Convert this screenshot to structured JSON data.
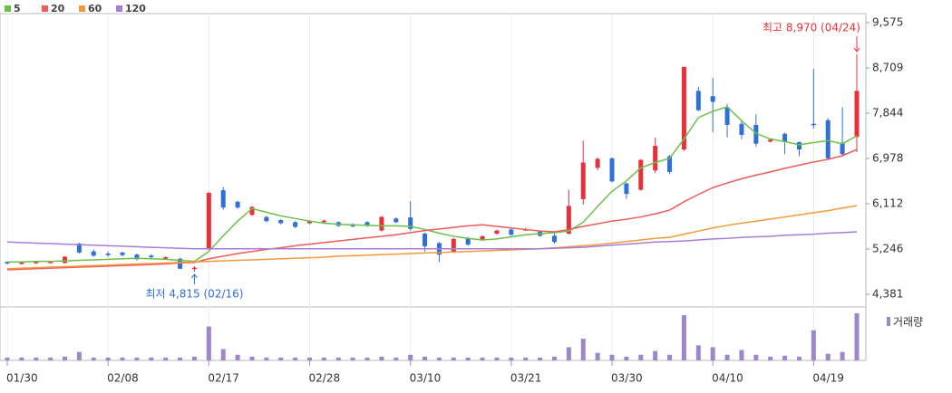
{
  "chart_data": {
    "type": "candlestick",
    "categories": [
      "01/30",
      null,
      null,
      null,
      null,
      null,
      null,
      "02/08",
      null,
      null,
      null,
      null,
      null,
      null,
      "02/17",
      null,
      null,
      null,
      null,
      null,
      null,
      "02/28",
      null,
      null,
      null,
      null,
      null,
      null,
      "03/10",
      null,
      null,
      null,
      null,
      null,
      null,
      "03/21",
      null,
      null,
      null,
      null,
      null,
      null,
      "03/30",
      null,
      null,
      null,
      null,
      null,
      null,
      "04/10",
      null,
      null,
      null,
      null,
      null,
      null,
      "04/19",
      null,
      null,
      null
    ],
    "open": [
      5000,
      4960,
      4980,
      4990,
      4980,
      5350,
      5200,
      5160,
      5180,
      5140,
      5120,
      5060,
      5060,
      4870,
      5250,
      6370,
      6150,
      5900,
      5860,
      5800,
      5760,
      5740,
      5760,
      5760,
      5720,
      5760,
      5600,
      5830,
      5850,
      5540,
      5360,
      5190,
      5460,
      5420,
      5540,
      5620,
      5600,
      5580,
      5500,
      5540,
      6200,
      6800,
      6980,
      6500,
      6380,
      6750,
      7020,
      7150,
      8270,
      8170,
      7960,
      7640,
      7620,
      7300,
      7450,
      7290,
      7640,
      7710,
      7280,
      7390
    ],
    "high": [
      5010,
      5010,
      5020,
      5010,
      5110,
      5370,
      5240,
      5200,
      5190,
      5160,
      5150,
      5110,
      5080,
      4920,
      6340,
      6430,
      6170,
      6070,
      5880,
      5820,
      5780,
      5800,
      5810,
      5780,
      5740,
      5780,
      5880,
      5850,
      6160,
      5560,
      5380,
      5460,
      5480,
      5510,
      5620,
      5640,
      5650,
      5600,
      5560,
      6380,
      7320,
      7000,
      7000,
      6520,
      6970,
      7380,
      7050,
      8730,
      8350,
      8520,
      8020,
      7700,
      7820,
      7360,
      7470,
      7300,
      8690,
      7750,
      7960,
      8970
    ],
    "low": [
      4950,
      4950,
      4960,
      4980,
      4970,
      5160,
      5100,
      5100,
      5110,
      5030,
      5060,
      5050,
      4860,
      4815,
      5230,
      6000,
      6020,
      5880,
      5760,
      5720,
      5650,
      5720,
      5740,
      5670,
      5660,
      5670,
      5580,
      5740,
      5600,
      5200,
      5000,
      5170,
      5310,
      5400,
      5520,
      5500,
      5590,
      5480,
      5350,
      5530,
      6100,
      6750,
      6520,
      6210,
      6360,
      6700,
      6680,
      7120,
      7880,
      7480,
      7380,
      7350,
      7200,
      7280,
      7060,
      7020,
      7550,
      6950,
      7040,
      7100
    ],
    "close": [
      4970,
      4990,
      5000,
      5000,
      5100,
      5180,
      5120,
      5130,
      5130,
      5050,
      5090,
      5090,
      4870,
      4890,
      6320,
      6040,
      6040,
      6050,
      5780,
      5740,
      5670,
      5780,
      5790,
      5690,
      5680,
      5690,
      5860,
      5760,
      5630,
      5300,
      5140,
      5440,
      5330,
      5490,
      5600,
      5520,
      5630,
      5500,
      5380,
      6070,
      6900,
      6970,
      6540,
      6300,
      6950,
      7220,
      6720,
      8730,
      7900,
      8060,
      7620,
      7430,
      7260,
      7340,
      7300,
      7150,
      7620,
      6980,
      7060,
      8270
    ],
    "up_color": "#e8323a",
    "down_color": "#2f6fd8",
    "series": [
      {
        "name": "5",
        "color": "#6cc04a",
        "values": [
          5000,
          5000,
          5010,
          5010,
          5020,
          5030,
          5040,
          5050,
          5060,
          5070,
          5060,
          5050,
          5030,
          5010,
          5200,
          5500,
          5780,
          6020,
          5950,
          5880,
          5830,
          5780,
          5740,
          5720,
          5710,
          5700,
          5690,
          5690,
          5680,
          5620,
          5550,
          5490,
          5450,
          5420,
          5440,
          5480,
          5520,
          5540,
          5560,
          5590,
          5760,
          6060,
          6350,
          6550,
          6800,
          6900,
          6980,
          7350,
          7760,
          7880,
          7965,
          7700,
          7460,
          7350,
          7300,
          7240,
          7280,
          7320,
          7260,
          7410
        ]
      },
      {
        "name": "20",
        "color": "#ef5a5a",
        "values": [
          4850,
          4860,
          4870,
          4880,
          4890,
          4900,
          4910,
          4920,
          4930,
          4940,
          4950,
          4960,
          4980,
          4990,
          5060,
          5110,
          5160,
          5200,
          5240,
          5270,
          5310,
          5340,
          5370,
          5400,
          5430,
          5460,
          5490,
          5520,
          5560,
          5600,
          5630,
          5660,
          5690,
          5710,
          5680,
          5650,
          5620,
          5590,
          5575,
          5620,
          5680,
          5730,
          5780,
          5815,
          5860,
          5920,
          5990,
          6150,
          6290,
          6420,
          6510,
          6590,
          6660,
          6720,
          6790,
          6850,
          6910,
          6960,
          7030,
          7150
        ]
      },
      {
        "name": "60",
        "color": "#f59a3c",
        "values": [
          4870,
          4880,
          4890,
          4900,
          4910,
          4920,
          4930,
          4940,
          4950,
          4960,
          4970,
          4980,
          4990,
          5000,
          5010,
          5020,
          5030,
          5040,
          5050,
          5060,
          5070,
          5080,
          5090,
          5110,
          5120,
          5130,
          5140,
          5150,
          5160,
          5170,
          5180,
          5190,
          5200,
          5210,
          5220,
          5230,
          5240,
          5250,
          5270,
          5290,
          5310,
          5330,
          5360,
          5390,
          5420,
          5450,
          5470,
          5530,
          5590,
          5650,
          5700,
          5740,
          5780,
          5820,
          5860,
          5900,
          5940,
          5980,
          6030,
          6075
        ]
      },
      {
        "name": "120",
        "color": "#a77ddb",
        "values": [
          5380,
          5370,
          5360,
          5350,
          5340,
          5330,
          5320,
          5310,
          5300,
          5290,
          5280,
          5270,
          5260,
          5250,
          5250,
          5250,
          5250,
          5250,
          5250,
          5250,
          5250,
          5250,
          5250,
          5250,
          5250,
          5250,
          5250,
          5250,
          5250,
          5250,
          5250,
          5250,
          5250,
          5250,
          5250,
          5250,
          5250,
          5250,
          5260,
          5270,
          5280,
          5300,
          5320,
          5340,
          5360,
          5380,
          5390,
          5400,
          5420,
          5440,
          5450,
          5470,
          5480,
          5490,
          5510,
          5520,
          5530,
          5550,
          5560,
          5575
        ]
      }
    ],
    "volume": {
      "name": "거래량",
      "color": "#9d86cc",
      "values": [
        3,
        3,
        3,
        3,
        4,
        9,
        3,
        3,
        3,
        3,
        3,
        3,
        3,
        4,
        36,
        12,
        6,
        4,
        3,
        3,
        3,
        3,
        3,
        3,
        3,
        3,
        4,
        3,
        6,
        4,
        3,
        3,
        3,
        3,
        3,
        3,
        3,
        3,
        4,
        14,
        23,
        8,
        6,
        4,
        6,
        10,
        6,
        48,
        16,
        14,
        6,
        11,
        6,
        4,
        5,
        4,
        32,
        7,
        9,
        50
      ]
    },
    "ylim": [
      4156,
      9748
    ],
    "yticks": [
      {
        "value": 9575,
        "label": "9,575"
      },
      {
        "value": 8709,
        "label": "8,709"
      },
      {
        "value": 7844,
        "label": "7,844"
      },
      {
        "value": 6978,
        "label": "6,978"
      },
      {
        "value": 6112,
        "label": "6,112"
      },
      {
        "value": 5246,
        "label": "5,246"
      },
      {
        "value": 4381,
        "label": "4,381"
      }
    ],
    "annotations": [
      {
        "text": "최고 8,970 (04/24)",
        "color": "#e8323a"
      },
      {
        "text": "최저 4,815 (02/16)",
        "color": "#2f6fd8"
      }
    ]
  }
}
